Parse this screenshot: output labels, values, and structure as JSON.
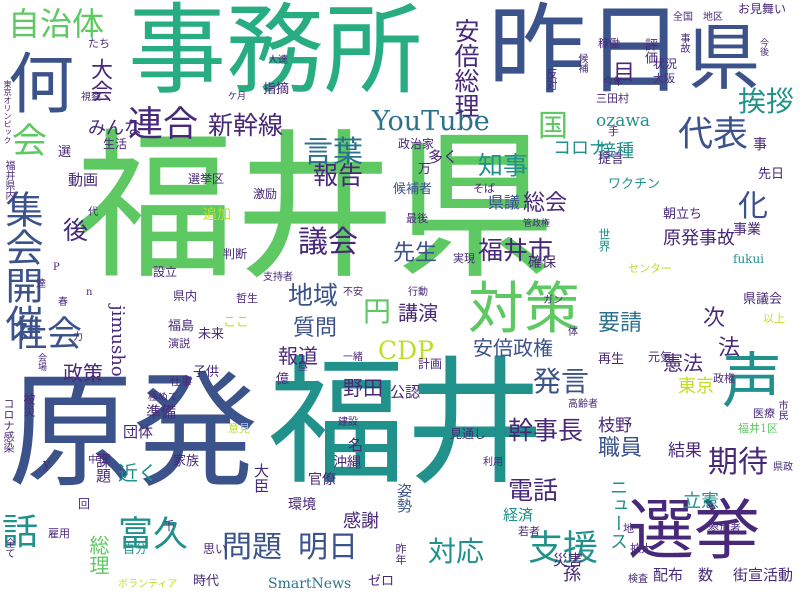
{
  "words": [
    "福井県",
    "原発",
    "福井",
    "事務所",
    "昨日",
    "県",
    "何",
    "選挙",
    "声",
    "対策",
    "自治体",
    "連合",
    "新幹線",
    "言葉",
    "YouTube",
    "国",
    "代表",
    "挨拶",
    "会",
    "集会開催",
    "社会",
    "話",
    "富久",
    "問題",
    "明日",
    "対応",
    "支援",
    "期待",
    "幹事長",
    "発言",
    "電話",
    "福井市",
    "議会",
    "先生",
    "報告",
    "知事",
    "総会",
    "県議",
    "地域",
    "質問",
    "円",
    "CDP",
    "講演",
    "安倍政権",
    "報道",
    "野田",
    "公認",
    "要請",
    "原発事故",
    "化",
    "憲法",
    "法",
    "次",
    "東京",
    "職員",
    "立憲",
    "結果",
    "枝野",
    "政策",
    "後",
    "大会",
    "みんな",
    "安倍総理",
    "目",
    "ozawa",
    "接種",
    "コロナ",
    "多く",
    "近く",
    "準備",
    "団体",
    "家族",
    "jimusho",
    "総理",
    "感謝",
    "姿勢",
    "経済",
    "ニュース",
    "災害",
    "街宣活動",
    "SmartNews",
    "数",
    "配布",
    "孫",
    "時代",
    "名",
    "沖縄",
    "環境",
    "官僚",
    "大臣",
    "自分",
    "思い",
    "課題",
    "動画",
    "生活",
    "視察",
    "選挙区",
    "激励",
    "追加",
    "判断",
    "哲生",
    "支持者",
    "設立",
    "県内",
    "ここ",
    "福島",
    "演説",
    "未来",
    "子供",
    "仕事",
    "億",
    "極めて",
    "意見",
    "政治家",
    "指摘",
    "人達",
    "三田村",
    "最後",
    "候補者",
    "そば",
    "不安",
    "行動",
    "実現",
    "確保",
    "ワクチン",
    "世界",
    "センター",
    "提言",
    "朝立ち",
    "事業",
    "fukui",
    "県議会",
    "以上",
    "元気",
    "再生",
    "高齢者",
    "見通し",
    "計画",
    "中止",
    "全て",
    "雇用",
    "回",
    "y",
    "千",
    "ボランティア",
    "ゼロ",
    "昨年",
    "若者",
    "拡大",
    "検査",
    "参加者",
    "県政",
    "医療",
    "福井1区",
    "市民",
    "政権",
    "利用",
    "地",
    "建設",
    "一緒",
    "昼",
    "コロナ感染",
    "福井県内",
    "被災",
    "会場",
    "春",
    "力",
    "n",
    "P",
    "達",
    "代",
    "選",
    "たち",
    "東京オリンピック",
    "万",
    "管政権",
    "ガン",
    "体",
    "手",
    "反対",
    "稼働",
    "今年",
    "大阪",
    "状況",
    "評価",
    "全国",
    "事故",
    "地区",
    "お見舞い",
    "今後",
    "候補",
    "事",
    "先日",
    "ケ月"
  ]
}
